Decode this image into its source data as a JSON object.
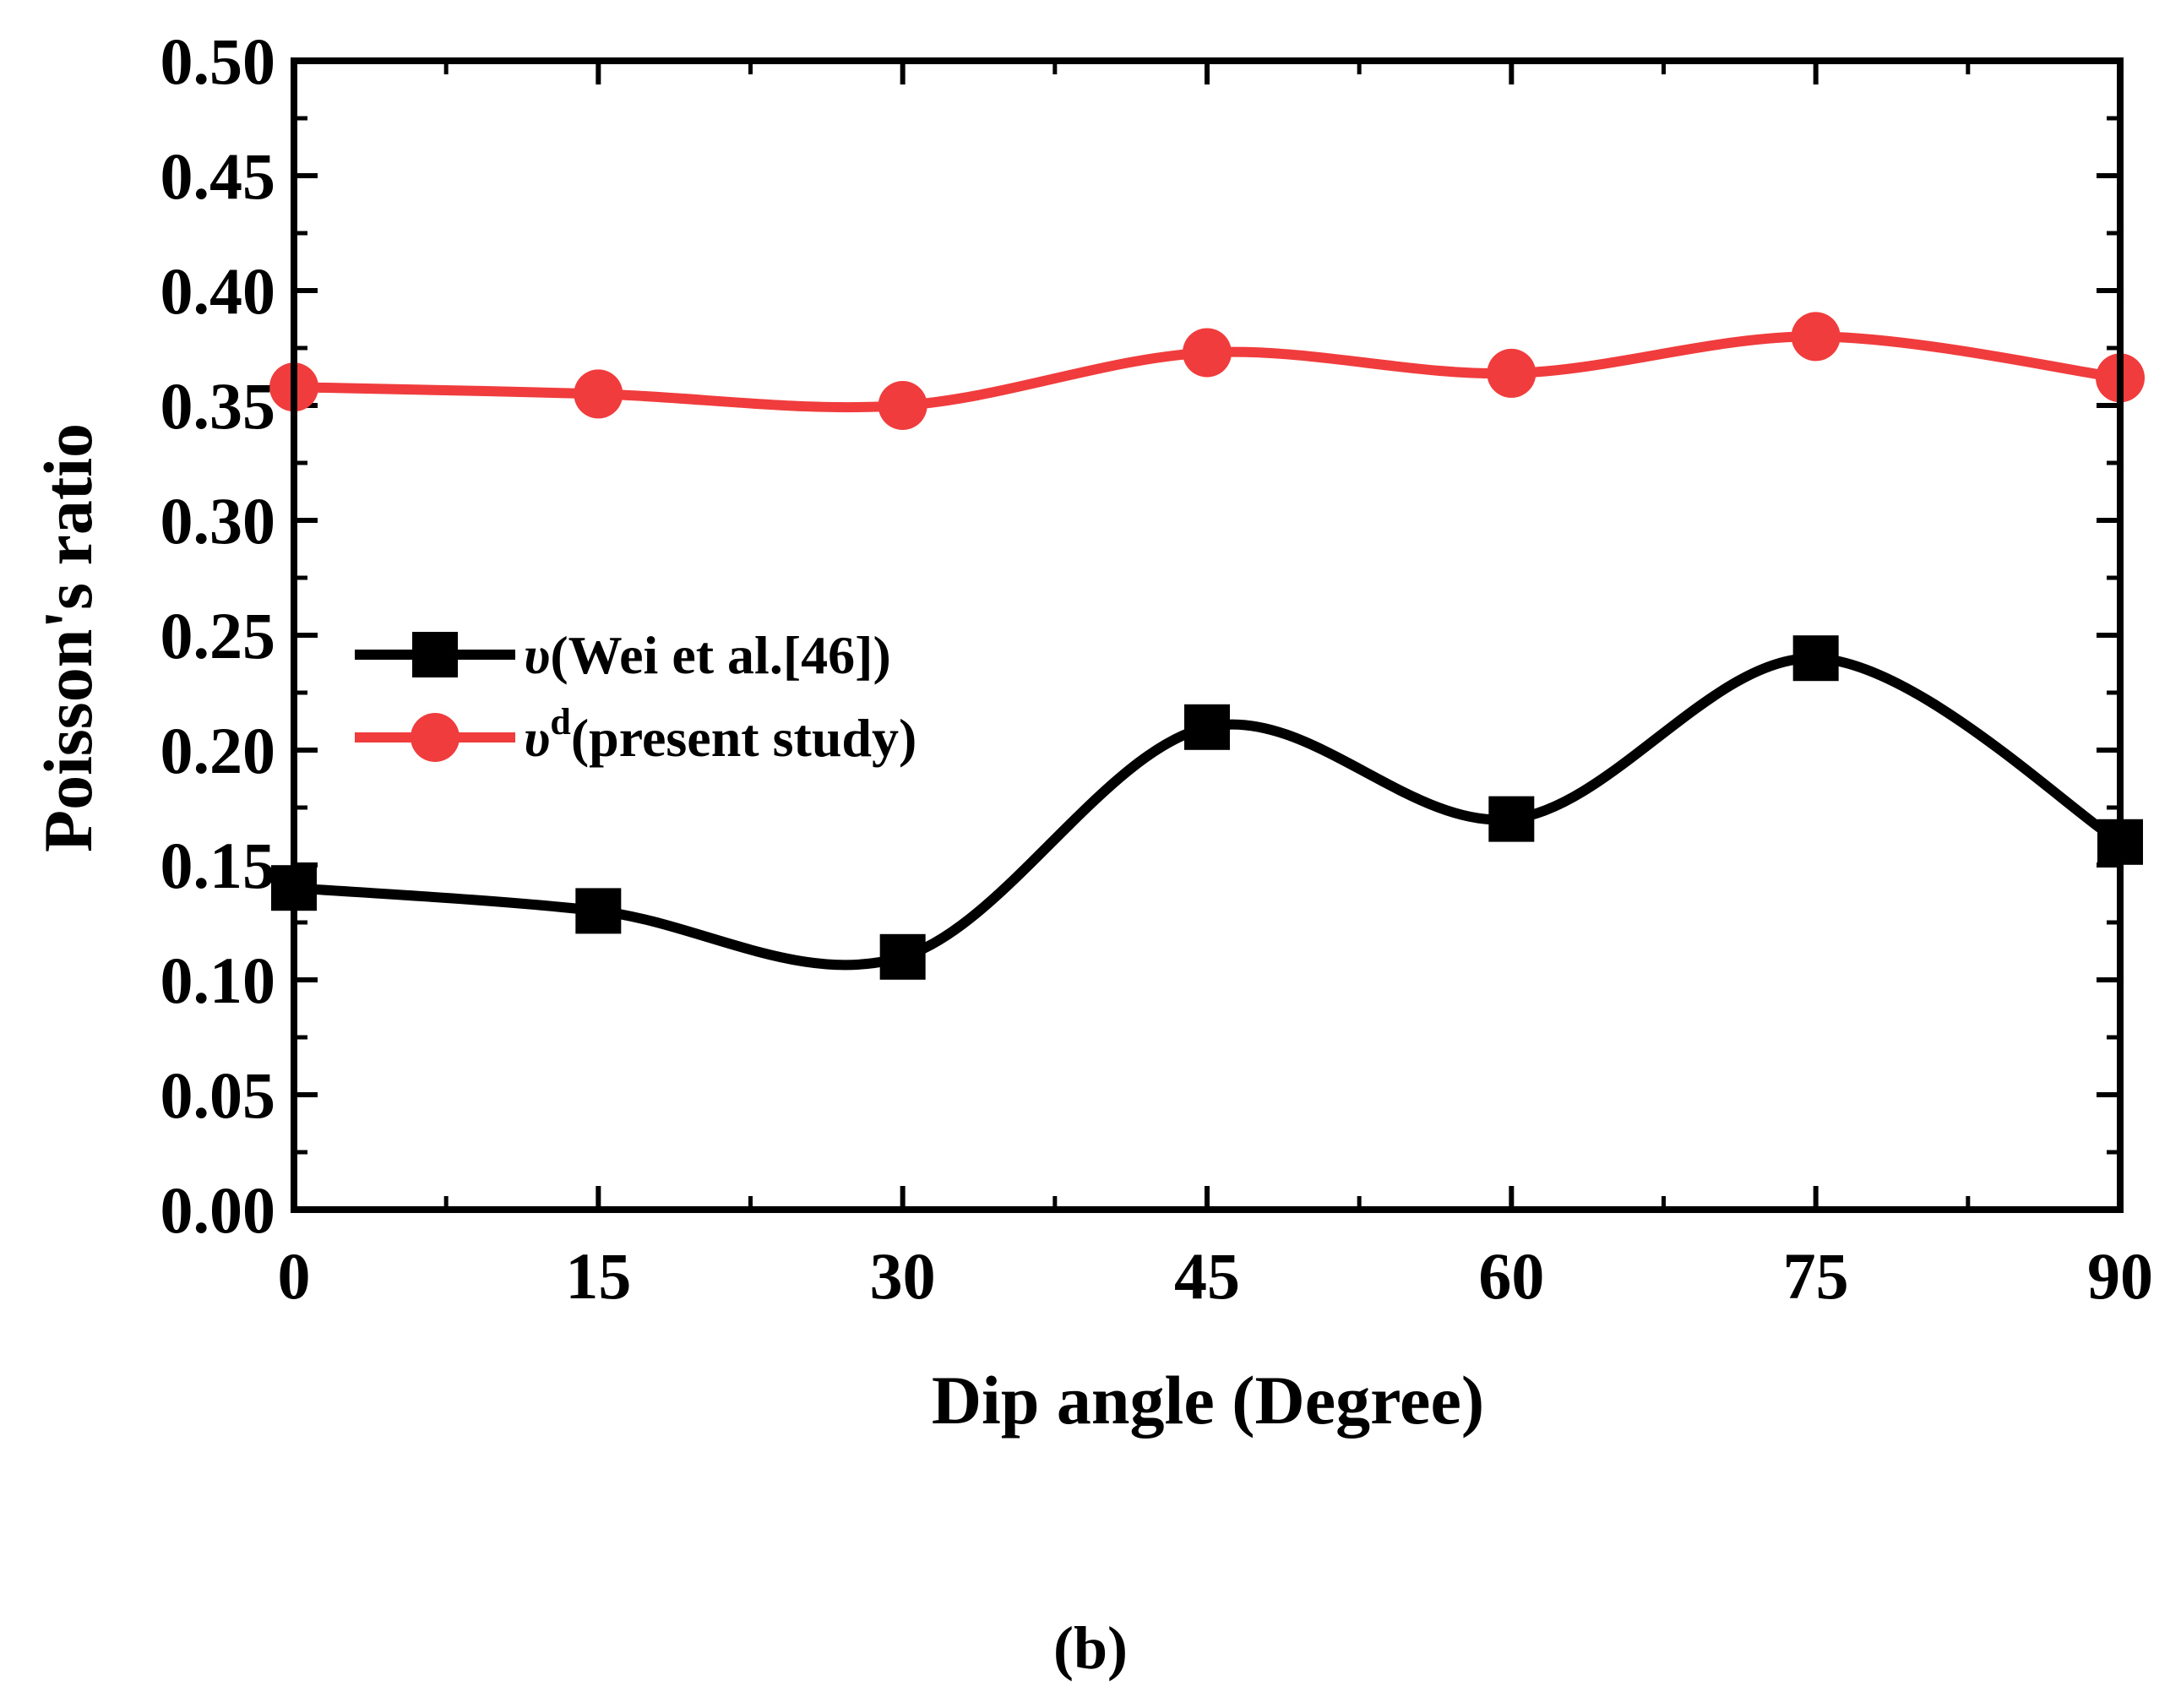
{
  "chart_data": {
    "type": "line",
    "x": [
      0,
      15,
      30,
      45,
      60,
      75,
      90
    ],
    "series": [
      {
        "name_main": "υ",
        "name_rest": "(Wei et al.[46])",
        "name_sup": "",
        "color": "#000000",
        "marker": "square",
        "values": [
          0.14,
          0.13,
          0.11,
          0.21,
          0.17,
          0.24,
          0.16
        ]
      },
      {
        "name_main": "υ",
        "name_sup": "d",
        "name_rest": "(present study)",
        "color": "#f03c3c",
        "marker": "circle",
        "values": [
          0.358,
          0.355,
          0.35,
          0.373,
          0.364,
          0.38,
          0.362
        ]
      }
    ],
    "xlabel": "Dip angle (Degree)",
    "ylabel": "Poisson's ratio",
    "xlim": [
      0,
      90
    ],
    "ylim": [
      0,
      0.5
    ],
    "xticks": [
      "0",
      "15",
      "30",
      "45",
      "60",
      "75",
      "90"
    ],
    "yticks": [
      "0.00",
      "0.05",
      "0.10",
      "0.15",
      "0.20",
      "0.25",
      "0.30",
      "0.35",
      "0.40",
      "0.45",
      "0.50"
    ],
    "grid": false,
    "legend_position": "center-left",
    "panel_label": "(b)"
  }
}
